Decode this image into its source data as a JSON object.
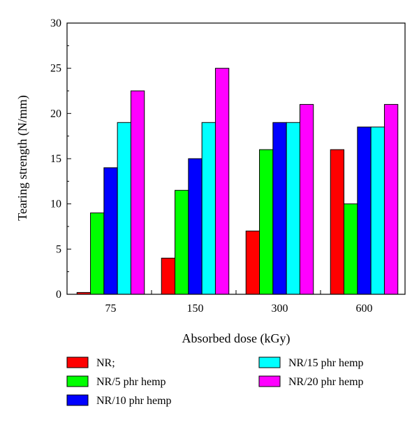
{
  "chart_data": {
    "type": "bar",
    "title": "",
    "xlabel": "Absorbed dose (kGy)",
    "ylabel": "Tearing strength (N/mm)",
    "categories": [
      "75",
      "150",
      "300",
      "600"
    ],
    "ylim": [
      0,
      30
    ],
    "yticks": [
      "0",
      "5",
      "10",
      "15",
      "20",
      "25",
      "30"
    ],
    "grid": false,
    "legend_position": "bottom",
    "series": [
      {
        "name": "NR;",
        "color": "#ff0000",
        "values": [
          0.2,
          4,
          7,
          16
        ]
      },
      {
        "name": "NR/5 phr hemp",
        "color": "#00ff00",
        "values": [
          9,
          11.5,
          16,
          10
        ]
      },
      {
        "name": "NR/10 phr hemp",
        "color": "#0000ff",
        "values": [
          14,
          15,
          19,
          18.5
        ]
      },
      {
        "name": "NR/15 phr hemp",
        "color": "#00ffff",
        "values": [
          19,
          19,
          19,
          18.5
        ]
      },
      {
        "name": "NR/20 phr hemp",
        "color": "#ff00ff",
        "values": [
          22.5,
          25,
          21,
          21
        ]
      }
    ]
  }
}
